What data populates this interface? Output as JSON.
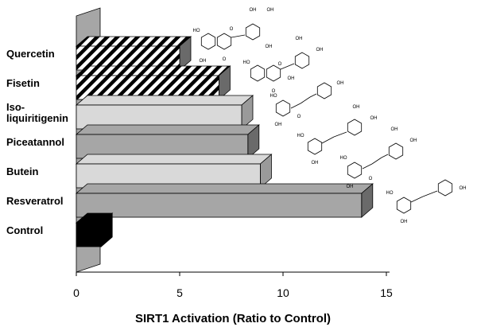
{
  "chart_data": {
    "type": "bar",
    "orientation": "horizontal",
    "style": "3d",
    "title": "",
    "xlabel": "SIRT1 Activation (Ratio to Control)",
    "ylabel": "",
    "xlim": [
      0,
      15
    ],
    "xticks": [
      "0",
      "5",
      "10",
      "15"
    ],
    "categories": [
      "Quercetin",
      "Fisetin",
      "Iso-liquiritigenin",
      "Piceatannol",
      "Butein",
      "Resveratrol",
      "Control"
    ],
    "category_label_lines": [
      [
        "Quercetin"
      ],
      [
        "Fisetin"
      ],
      [
        "Iso-",
        "liquiritigenin"
      ],
      [
        "Piceatannol"
      ],
      [
        "Butein"
      ],
      [
        "Resveratrol"
      ],
      [
        "Control"
      ]
    ],
    "values": [
      5.0,
      6.9,
      8.0,
      8.3,
      8.9,
      13.8,
      1.2
    ],
    "bar_fills": [
      "hatch",
      "hatch",
      "#d9d9d9",
      "#a6a6a6",
      "#d9d9d9",
      "#a6a6a6",
      "#000000"
    ],
    "grid": false,
    "legend": "none",
    "structures": [
      {
        "name": "quercetin-structure",
        "labels": [
          "OH",
          "OH",
          "HO",
          "O",
          "OH",
          "OH",
          "O"
        ]
      },
      {
        "name": "fisetin-structure",
        "labels": [
          "OH",
          "OH",
          "HO",
          "O",
          "OH",
          "O"
        ]
      },
      {
        "name": "isoliquiritigenin-structure",
        "labels": [
          "OH",
          "HO",
          "OH",
          "O"
        ]
      },
      {
        "name": "piceatannol-structure",
        "labels": [
          "OH",
          "OH",
          "HO",
          "OH"
        ]
      },
      {
        "name": "butein-structure",
        "labels": [
          "OH",
          "OH",
          "HO",
          "OH",
          "O"
        ]
      },
      {
        "name": "resveratrol-structure",
        "labels": [
          "OH",
          "HO",
          "OH"
        ]
      }
    ]
  }
}
